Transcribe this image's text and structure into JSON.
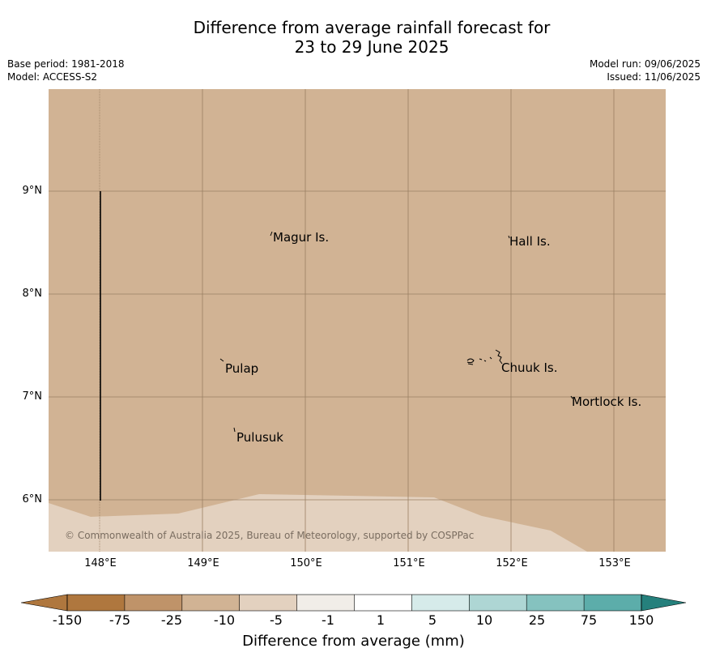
{
  "title": {
    "line1": "Difference from average rainfall forecast for",
    "line2": "23 to 29 June 2025"
  },
  "meta": {
    "base_period": "Base period: 1981-2018",
    "model": "Model: ACCESS-S2",
    "model_run": "Model run: 09/06/2025",
    "issued": "Issued: 11/06/2025"
  },
  "map": {
    "fill_color": "#d1b394",
    "lat_labels": [
      "9°N",
      "8°N",
      "7°N",
      "6°N"
    ],
    "lon_labels": [
      "148°E",
      "149°E",
      "150°E",
      "151°E",
      "152°E",
      "153°E"
    ],
    "places": [
      "Magur Is.",
      "Hall Is.",
      "Pulap",
      "Chuuk Is.",
      "Mortlock Is.",
      "Pulusuk"
    ],
    "copyright": "© Commonwealth of Australia 2025, Bureau of Meteorology, supported by COSPPac"
  },
  "legend": {
    "title": "Difference from average (mm)",
    "ticks": [
      "-150",
      "-75",
      "-25",
      "-10",
      "-5",
      "-1",
      "1",
      "5",
      "10",
      "25",
      "75",
      "150"
    ],
    "colors": [
      "#af773e",
      "#bf9369",
      "#d1b394",
      "#e3d1bf",
      "#f1ede8",
      "#ffffff",
      "#d6ebea",
      "#aed6d4",
      "#85c2bf",
      "#5cadaa",
      "#349995",
      "#25807c"
    ]
  }
}
